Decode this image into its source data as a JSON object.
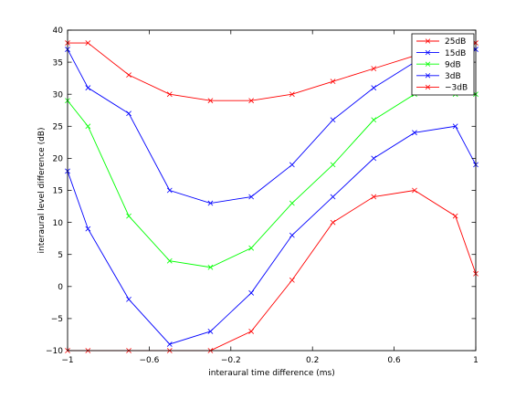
{
  "chart_data": {
    "type": "line",
    "xlabel": "interaural time difference (ms)",
    "ylabel": "interaural level difference (dB)",
    "xlim": [
      -1,
      1
    ],
    "ylim": [
      -10,
      40
    ],
    "xticks": [
      -1,
      -0.6,
      -0.2,
      0.2,
      0.6,
      1
    ],
    "xtick_labels": [
      "−1",
      "−0.6",
      "−0.2",
      "0.2",
      "0.6",
      "1"
    ],
    "yticks": [
      -10,
      -5,
      0,
      5,
      10,
      15,
      20,
      25,
      30,
      35,
      40
    ],
    "ytick_labels": [
      "−10",
      "−5",
      "0",
      "5",
      "10",
      "15",
      "20",
      "25",
      "30",
      "35",
      "40"
    ],
    "grid": false,
    "legend_position": "top-right",
    "marker": "x",
    "x": [
      -1,
      -0.9,
      -0.7,
      -0.5,
      -0.3,
      -0.1,
      0.1,
      0.3,
      0.5,
      0.7,
      0.9,
      1
    ],
    "series": [
      {
        "name": "25dB",
        "color": "#ff0000",
        "values": [
          38,
          38,
          33,
          30,
          29,
          29,
          30,
          32,
          34,
          36,
          38,
          38
        ]
      },
      {
        "name": "15dB",
        "color": "#0000ff",
        "values": [
          37,
          31,
          27,
          15,
          13,
          14,
          19,
          26,
          31,
          35,
          37,
          37
        ]
      },
      {
        "name": "9dB",
        "color": "#00ff00",
        "values": [
          29,
          25,
          11,
          4,
          3,
          6,
          13,
          19,
          26,
          30,
          30,
          30
        ]
      },
      {
        "name": "3dB",
        "color": "#0000ff",
        "values": [
          18,
          9,
          -2,
          -9,
          -7,
          -1,
          8,
          14,
          20,
          24,
          25,
          19
        ]
      },
      {
        "name": "−3dB",
        "color": "#ff0000",
        "values": [
          -10,
          -10,
          -10,
          -10,
          -10,
          -7,
          1,
          10,
          14,
          15,
          11,
          2
        ]
      }
    ]
  }
}
